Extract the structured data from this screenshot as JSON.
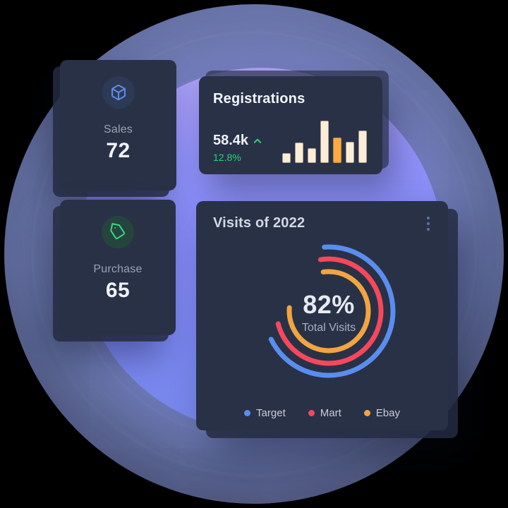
{
  "page": {
    "bg": "#000000"
  },
  "background": {
    "outer_circle_color": "#6b76ab",
    "inner_circle_color": "#8289f4"
  },
  "sales_card": {
    "label": "Sales",
    "value": "72",
    "icon": "box-icon",
    "icon_color": "#5f8cea",
    "icon_bg": "#2d3a56"
  },
  "purchase_card": {
    "label": "Purchase",
    "value": "65",
    "icon": "tag-icon",
    "icon_color": "#31dc7d",
    "icon_bg": "#25443e"
  },
  "registrations_card": {
    "title": "Registrations",
    "value": "58.4k",
    "trend": "up",
    "trend_color": "#2dd07c",
    "change": "12.8%"
  },
  "visits_card": {
    "title": "Visits of 2022",
    "menu_icon": "kebab-menu-icon",
    "center_value": "82%",
    "center_label": "Total Visits",
    "legend": [
      {
        "label": "Target",
        "color": "#5b8def"
      },
      {
        "label": "Mart",
        "color": "#f4485c"
      },
      {
        "label": "Ebay",
        "color": "#f2a53f"
      }
    ]
  },
  "chart_data": [
    {
      "type": "bar",
      "title": "Registrations mini bar chart",
      "values": [
        14,
        29,
        21,
        60,
        36,
        30,
        46
      ],
      "note": "no axes or labels shown; values are relative bar heights in px",
      "bar_color": "#faeed9",
      "bar_border": "#ab9e85",
      "highlight_index": 4,
      "highlight_color": "#fcab43",
      "highlight_border": "#c08b3e"
    },
    {
      "type": "radial-arc",
      "title": "Visits of 2022",
      "center_value": "82%",
      "center_label": "Total Visits",
      "stroke_width": 7,
      "center": {
        "x": 188,
        "y": 156
      },
      "series": [
        {
          "name": "Target",
          "color": "#5b8def",
          "radius": 91,
          "start_deg": -4,
          "end_deg": 244
        },
        {
          "name": "Mart",
          "color": "#f4485c",
          "radius": 74,
          "start_deg": -9,
          "end_deg": 256
        },
        {
          "name": "Ebay",
          "color": "#f2a53f",
          "radius": 56,
          "start_deg": -8,
          "end_deg": 275
        }
      ]
    }
  ]
}
